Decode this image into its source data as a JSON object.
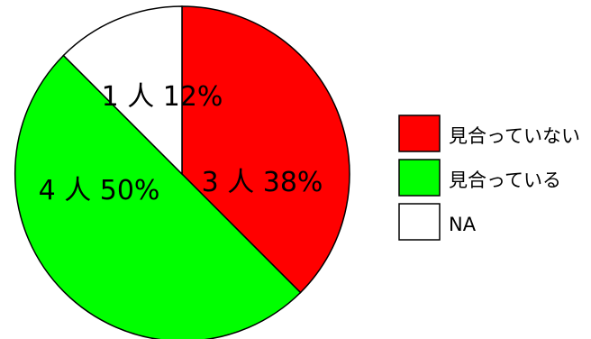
{
  "chart_data": {
    "type": "pie",
    "slices": [
      {
        "category": "見合っていない",
        "count": 3,
        "percent": 38,
        "label": "3 人 38%",
        "color": "#ff0000"
      },
      {
        "category": "見合っている",
        "count": 4,
        "percent": 50,
        "label": "4 人 50%",
        "color": "#00ff00"
      },
      {
        "category": "NA",
        "count": 1,
        "percent": 12,
        "label": "1 人 12%",
        "color": "#ffffff"
      }
    ],
    "start_angle": "12 o'clock",
    "direction": "clockwise",
    "legend": {
      "placement": "right",
      "entries": [
        "見合っていない",
        "見合っている",
        "NA"
      ]
    }
  }
}
